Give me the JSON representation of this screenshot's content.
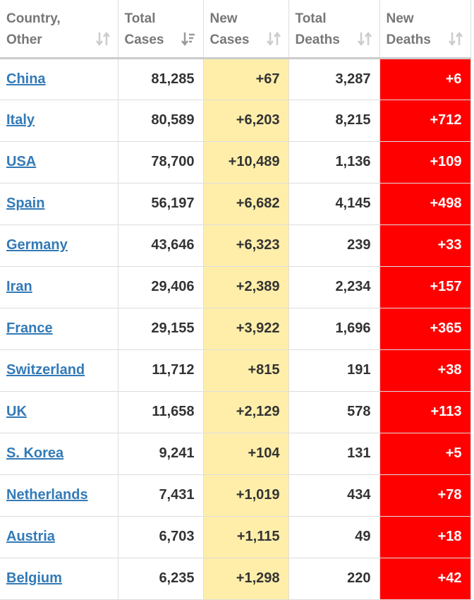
{
  "header": {
    "columns": [
      [
        "Country,",
        "Other"
      ],
      [
        "Total",
        "Cases"
      ],
      [
        "New",
        "Cases"
      ],
      [
        "Total",
        "Deaths"
      ],
      [
        "New",
        "Deaths"
      ]
    ]
  },
  "table": {
    "rows": [
      [
        "China",
        "81,285",
        "+67",
        "3,287",
        "+6"
      ],
      [
        "Italy",
        "80,589",
        "+6,203",
        "8,215",
        "+712"
      ],
      [
        "USA",
        "78,700",
        "+10,489",
        "1,136",
        "+109"
      ],
      [
        "Spain",
        "56,197",
        "+6,682",
        "4,145",
        "+498"
      ],
      [
        "Germany",
        "43,646",
        "+6,323",
        "239",
        "+33"
      ],
      [
        "Iran",
        "29,406",
        "+2,389",
        "2,234",
        "+157"
      ],
      [
        "France",
        "29,155",
        "+3,922",
        "1,696",
        "+365"
      ],
      [
        "Switzerland",
        "11,712",
        "+815",
        "191",
        "+38"
      ],
      [
        "UK",
        "11,658",
        "+2,129",
        "578",
        "+113"
      ],
      [
        "S. Korea",
        "9,241",
        "+104",
        "131",
        "+5"
      ],
      [
        "Netherlands",
        "7,431",
        "+1,019",
        "434",
        "+78"
      ],
      [
        "Austria",
        "6,703",
        "+1,115",
        "49",
        "+18"
      ],
      [
        "Belgium",
        "6,235",
        "+1,298",
        "220",
        "+42"
      ]
    ]
  }
}
